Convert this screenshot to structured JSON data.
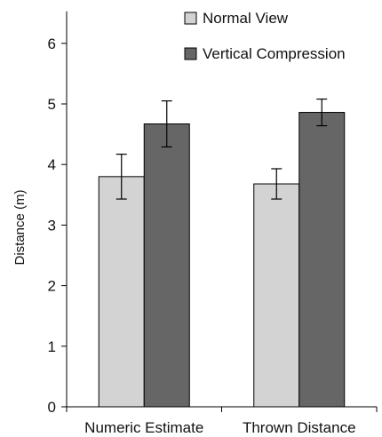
{
  "chart_data": {
    "type": "bar",
    "title": "",
    "xlabel": "",
    "ylabel": "Distance (m)",
    "ylim": [
      0,
      6.5
    ],
    "yticks": [
      "0",
      "1",
      "2",
      "3",
      "4",
      "5",
      "6"
    ],
    "categories": [
      "Numeric Estimate",
      "Thrown Distance"
    ],
    "series": [
      {
        "name": "Normal View",
        "color": "#d3d3d3",
        "values": [
          3.8,
          3.68
        ],
        "error": [
          0.37,
          0.25
        ]
      },
      {
        "name": "Vertical Compression",
        "color": "#666666",
        "values": [
          4.67,
          4.86
        ],
        "error": [
          0.38,
          0.22
        ]
      }
    ],
    "legend_position": "top-right",
    "grid": false
  }
}
